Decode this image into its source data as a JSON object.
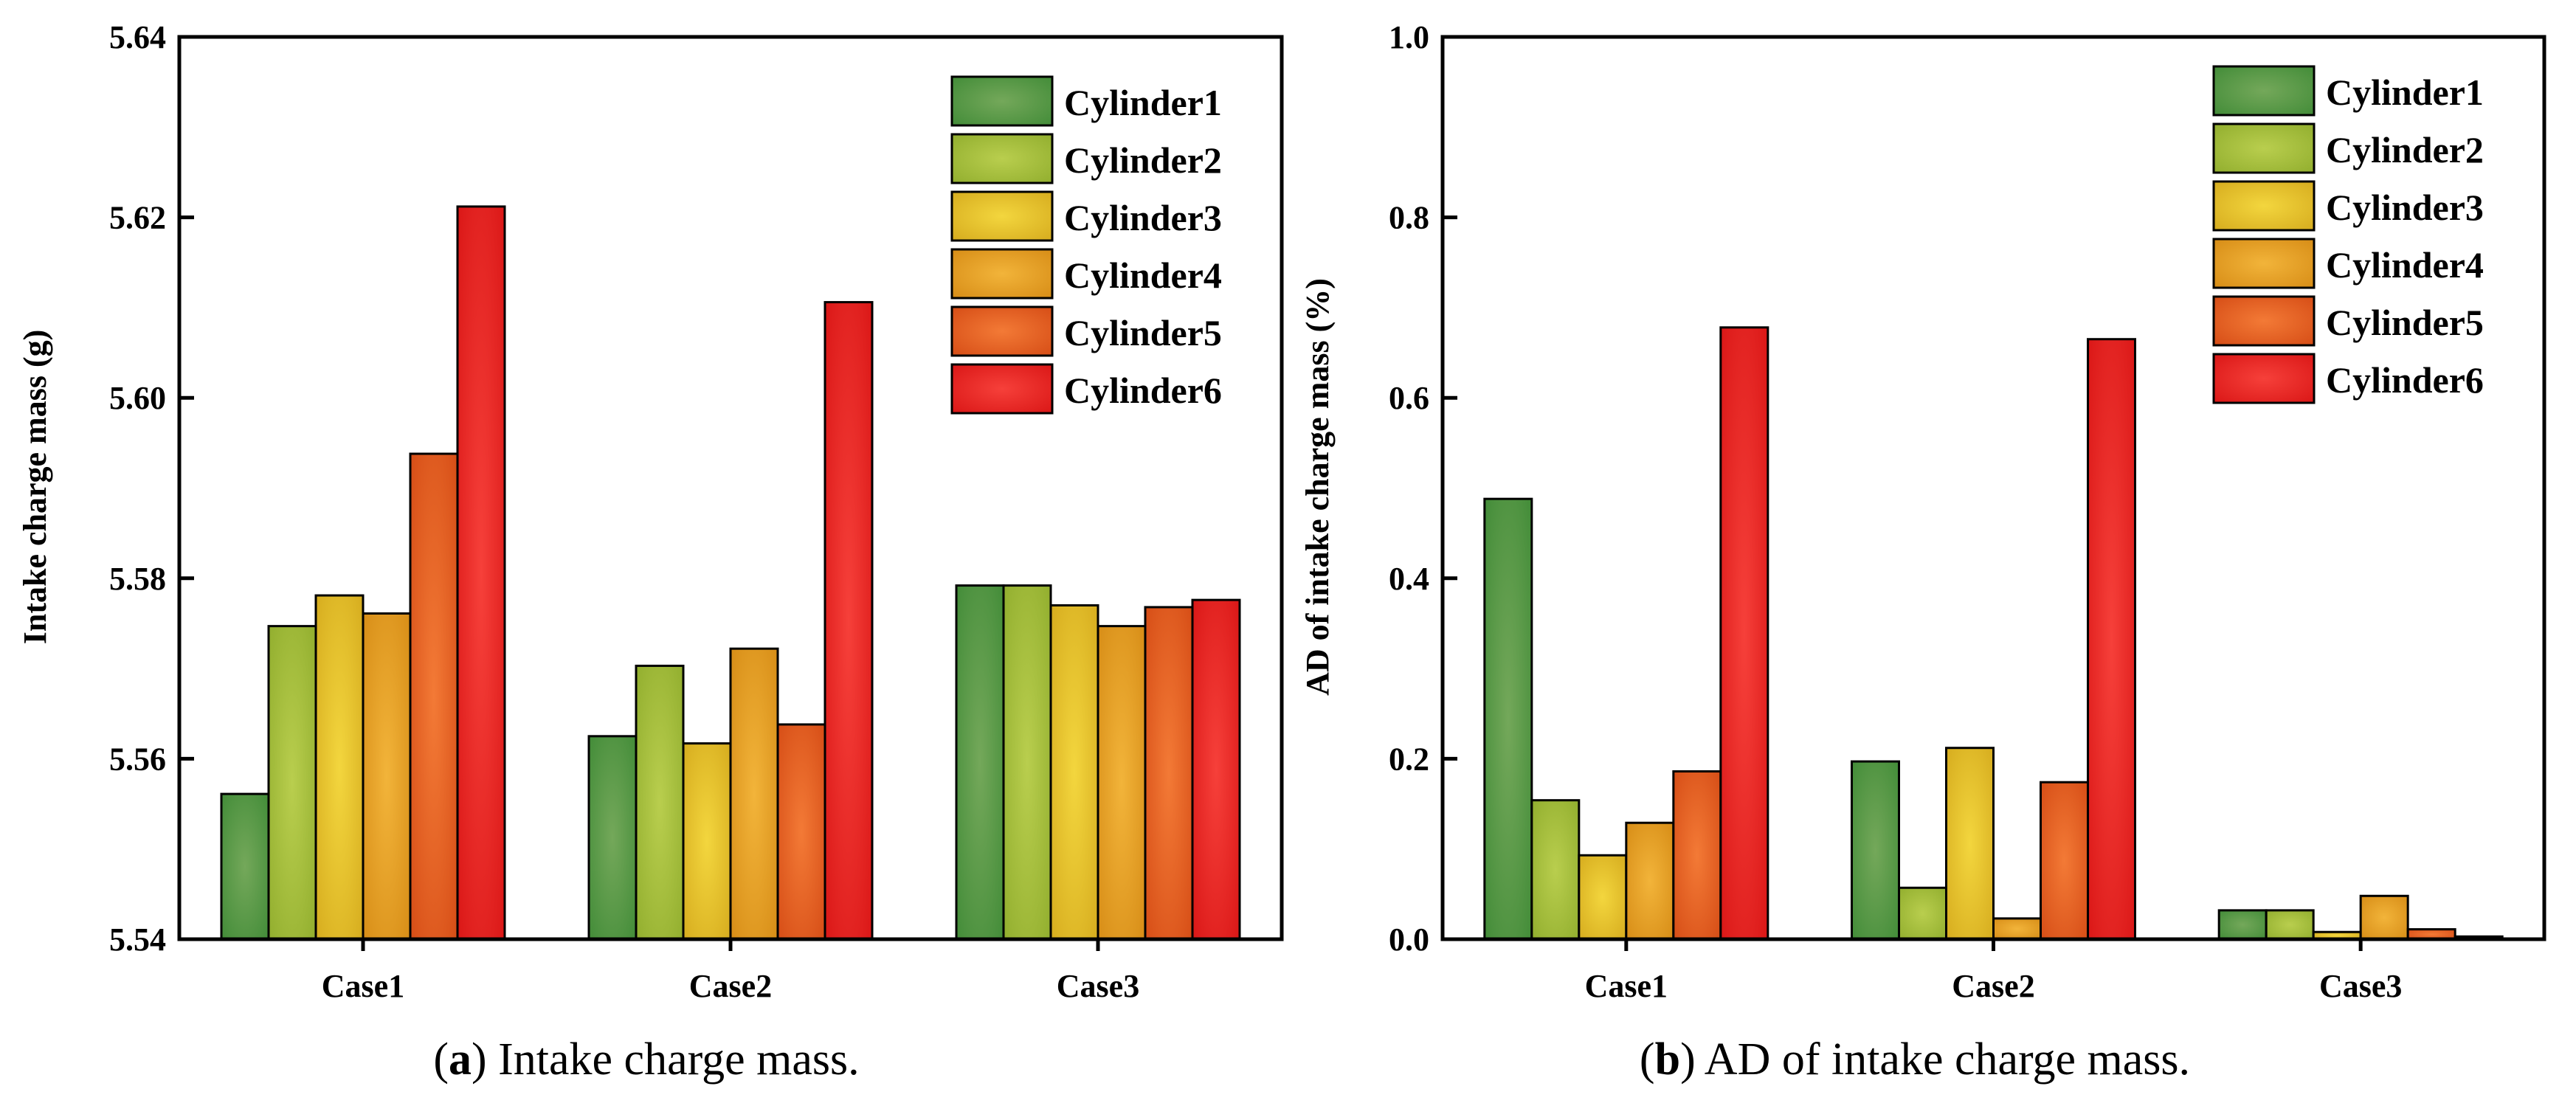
{
  "colors": {
    "Cylinder1": [
      "#74a85a",
      "#3f8a36"
    ],
    "Cylinder2": [
      "#b9ce4e",
      "#8fac2c"
    ],
    "Cylinder3": [
      "#f3d63e",
      "#d4a91c"
    ],
    "Cylinder4": [
      "#f2b43a",
      "#d58a14"
    ],
    "Cylinder5": [
      "#f37a36",
      "#d44a14"
    ],
    "Cylinder6": [
      "#f6403a",
      "#d81414"
    ]
  },
  "chart_data": [
    {
      "type": "bar",
      "panel": "a",
      "categories": [
        "Case1",
        "Case2",
        "Case3"
      ],
      "series": [
        {
          "name": "Cylinder1",
          "values": [
            5.5561,
            5.5625,
            5.5792
          ]
        },
        {
          "name": "Cylinder2",
          "values": [
            5.5747,
            5.5703,
            5.5792
          ]
        },
        {
          "name": "Cylinder3",
          "values": [
            5.5781,
            5.5617,
            5.577
          ]
        },
        {
          "name": "Cylinder4",
          "values": [
            5.5761,
            5.5722,
            5.5747
          ]
        },
        {
          "name": "Cylinder5",
          "values": [
            5.5938,
            5.5638,
            5.5768
          ]
        },
        {
          "name": "Cylinder6",
          "values": [
            5.6212,
            5.6106,
            5.5776
          ]
        }
      ],
      "ylabel": "Intake charge mass (g)",
      "ylim": [
        5.54,
        5.64
      ],
      "yticks": [
        "5.54",
        "5.56",
        "5.58",
        "5.60",
        "5.62",
        "5.64"
      ],
      "legend_position": "top-right",
      "caption_letter": "a",
      "caption_open": "(",
      "caption_rest": ") Intake charge mass."
    },
    {
      "type": "bar",
      "panel": "b",
      "categories": [
        "Case1",
        "Case2",
        "Case3"
      ],
      "series": [
        {
          "name": "Cylinder1",
          "values": [
            0.488,
            0.197,
            0.032
          ]
        },
        {
          "name": "Cylinder2",
          "values": [
            0.154,
            0.057,
            0.032
          ]
        },
        {
          "name": "Cylinder3",
          "values": [
            0.093,
            0.212,
            0.008
          ]
        },
        {
          "name": "Cylinder4",
          "values": [
            0.129,
            0.023,
            0.048
          ]
        },
        {
          "name": "Cylinder5",
          "values": [
            0.186,
            0.174,
            0.011
          ]
        },
        {
          "name": "Cylinder6",
          "values": [
            0.678,
            0.665,
            0.003
          ]
        }
      ],
      "ylabel": "AD of intake charge mass (%)",
      "ylim": [
        0.0,
        1.0
      ],
      "yticks": [
        "0.0",
        "0.2",
        "0.4",
        "0.6",
        "0.8",
        "1.0"
      ],
      "legend_position": "top-right",
      "caption_letter": "b",
      "caption_open": "(",
      "caption_rest": ") AD of intake charge mass."
    }
  ]
}
